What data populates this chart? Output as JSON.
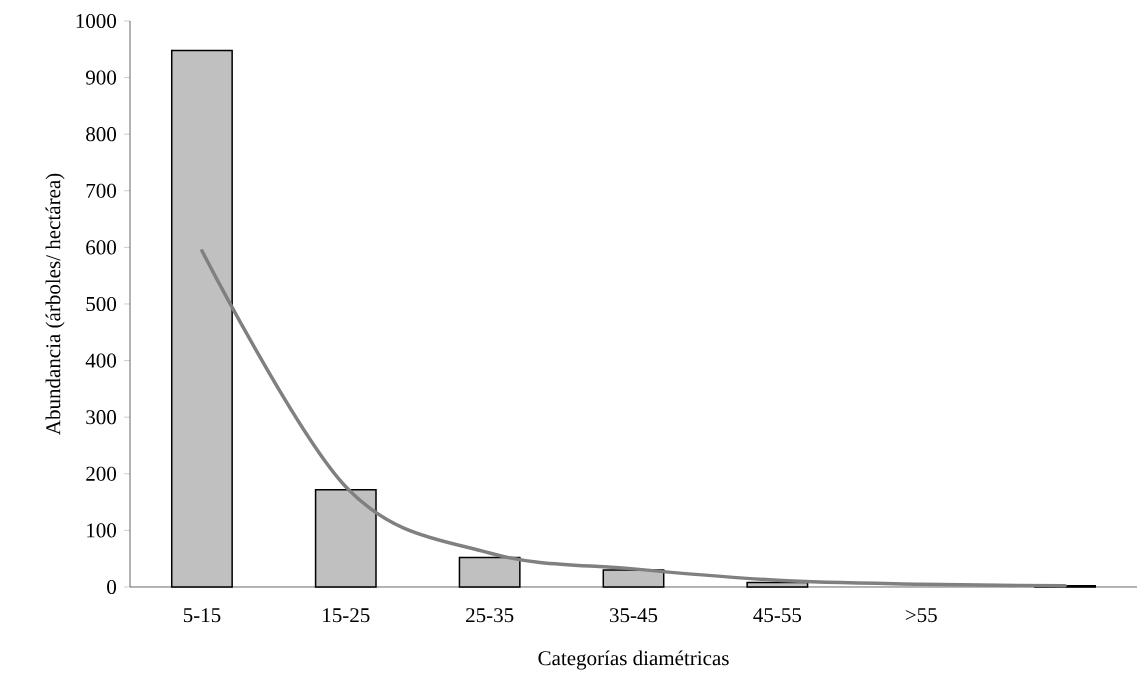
{
  "chart_data": {
    "type": "bar",
    "xlabel": "Categorías diamétricas",
    "ylabel": "Abundancia (árboles/ hectárea)",
    "categories": [
      "5-15",
      "15-25",
      "25-35",
      "35-45",
      "45-55",
      ">55",
      null
    ],
    "ylim": [
      0,
      1000
    ],
    "yticks": [
      0,
      100,
      200,
      300,
      400,
      500,
      600,
      700,
      800,
      900,
      1000
    ],
    "series": [
      {
        "color": "#c0c0c0",
        "values": [
          948,
          172,
          52,
          30,
          8,
          null,
          2
        ]
      },
      {
        "type": "line",
        "color": "#808080",
        "marker": "none",
        "line_style": "solid",
        "values": [
          594,
          177,
          60,
          32,
          12,
          5,
          2
        ]
      }
    ]
  }
}
